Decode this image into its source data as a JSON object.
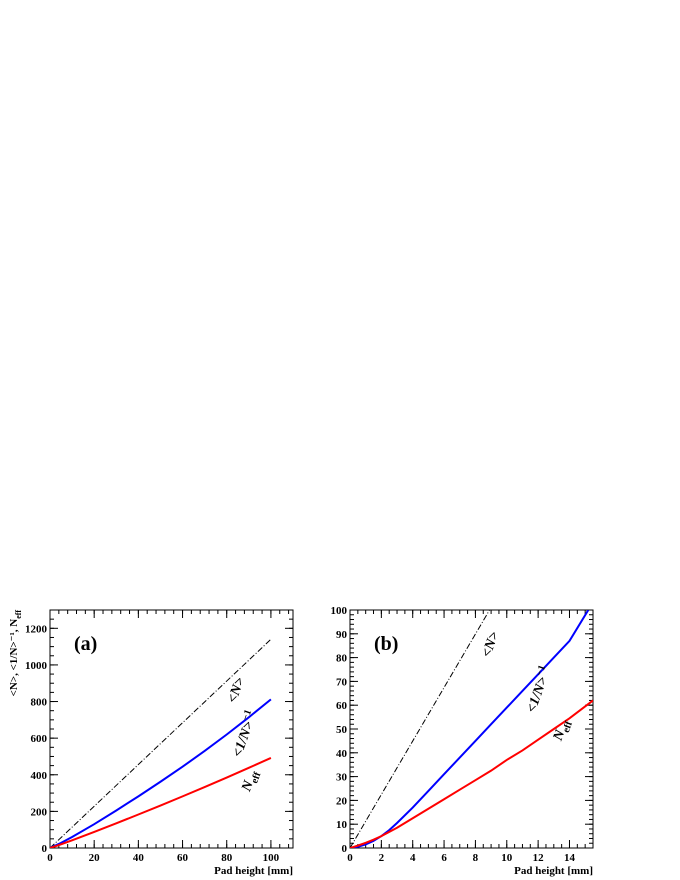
{
  "chart_data": [
    {
      "type": "line",
      "panel_label": "(a)",
      "xlabel": "Pad height [mm]",
      "ylabel": "<N>, <1/N>⁻¹, N_eff",
      "xlim": [
        0,
        110
      ],
      "ylim": [
        0,
        1300
      ],
      "x_ticks": [
        0,
        20,
        40,
        60,
        80,
        100
      ],
      "y_ticks": [
        0,
        200,
        400,
        600,
        800,
        1000,
        1200
      ],
      "x_minor_step": 4,
      "y_minor_step": 50,
      "series": [
        {
          "name": "<N>",
          "color": "#000000",
          "dash": "dashdot",
          "x": [
            0,
            100
          ],
          "y": [
            0,
            1140
          ]
        },
        {
          "name": "<1/N>⁻¹",
          "color": "#0000ff",
          "dash": "solid",
          "x": [
            0,
            5,
            10,
            20,
            30,
            40,
            50,
            60,
            70,
            80,
            90,
            100
          ],
          "y": [
            0,
            28,
            60,
            130,
            205,
            282,
            362,
            444,
            530,
            620,
            714,
            812
          ]
        },
        {
          "name": "N_eff",
          "color": "#ff0000",
          "dash": "solid",
          "x": [
            0,
            5,
            10,
            20,
            30,
            40,
            50,
            60,
            70,
            80,
            90,
            100
          ],
          "y": [
            0,
            20,
            42,
            88,
            135,
            183,
            232,
            282,
            333,
            385,
            438,
            492
          ]
        }
      ],
      "annotations": [
        {
          "text": "<N>",
          "x": 86,
          "y": 855,
          "rotation": -70
        },
        {
          "text": "<1/N>⁻¹",
          "x": 90,
          "y": 615,
          "rotation": -70
        },
        {
          "text": "N_eff",
          "x": 92,
          "y": 360,
          "rotation": -70
        }
      ]
    },
    {
      "type": "line",
      "panel_label": "(b)",
      "xlabel": "Pad height [mm]",
      "ylabel": "",
      "xlim": [
        0,
        15.5
      ],
      "ylim": [
        0,
        100
      ],
      "x_ticks": [
        0,
        2,
        4,
        6,
        8,
        10,
        12,
        14
      ],
      "y_ticks": [
        0,
        10,
        20,
        30,
        40,
        50,
        60,
        70,
        80,
        90,
        100
      ],
      "x_minor_step": 0.5,
      "y_minor_step": 2,
      "series": [
        {
          "name": "<N>",
          "color": "#000000",
          "dash": "dashdot",
          "x": [
            0,
            8.9
          ],
          "y": [
            0,
            100
          ]
        },
        {
          "name": "<1/N>⁻¹",
          "color": "#0000ff",
          "dash": "solid",
          "x": [
            0,
            0.5,
            1,
            1.5,
            2,
            2.5,
            3,
            4,
            5,
            6,
            7,
            8,
            9,
            10,
            11,
            12,
            13,
            14,
            15.2
          ],
          "y": [
            0,
            0.5,
            1.5,
            3,
            5,
            7.5,
            10.5,
            17,
            24,
            31,
            38,
            45,
            52,
            59,
            66,
            73,
            80,
            87,
            100
          ]
        },
        {
          "name": "N_eff",
          "color": "#ff0000",
          "dash": "solid",
          "x": [
            0,
            0.5,
            1,
            1.5,
            2,
            3,
            4,
            5,
            6,
            7,
            8,
            9,
            10,
            11,
            12,
            13,
            14,
            15.5
          ],
          "y": [
            0,
            1,
            2.2,
            3.5,
            5,
            8.5,
            12.5,
            16.5,
            20.5,
            24.5,
            28.5,
            32.5,
            37,
            41,
            45.5,
            50,
            54.5,
            62
          ]
        }
      ],
      "annotations": [
        {
          "text": "<N>",
          "x": 9.2,
          "y": 85,
          "rotation": -70
        },
        {
          "text": "<1/N>⁻¹",
          "x": 12.3,
          "y": 66,
          "rotation": -70
        },
        {
          "text": "N_eff",
          "x": 13.7,
          "y": 49,
          "rotation": -70
        }
      ]
    }
  ]
}
